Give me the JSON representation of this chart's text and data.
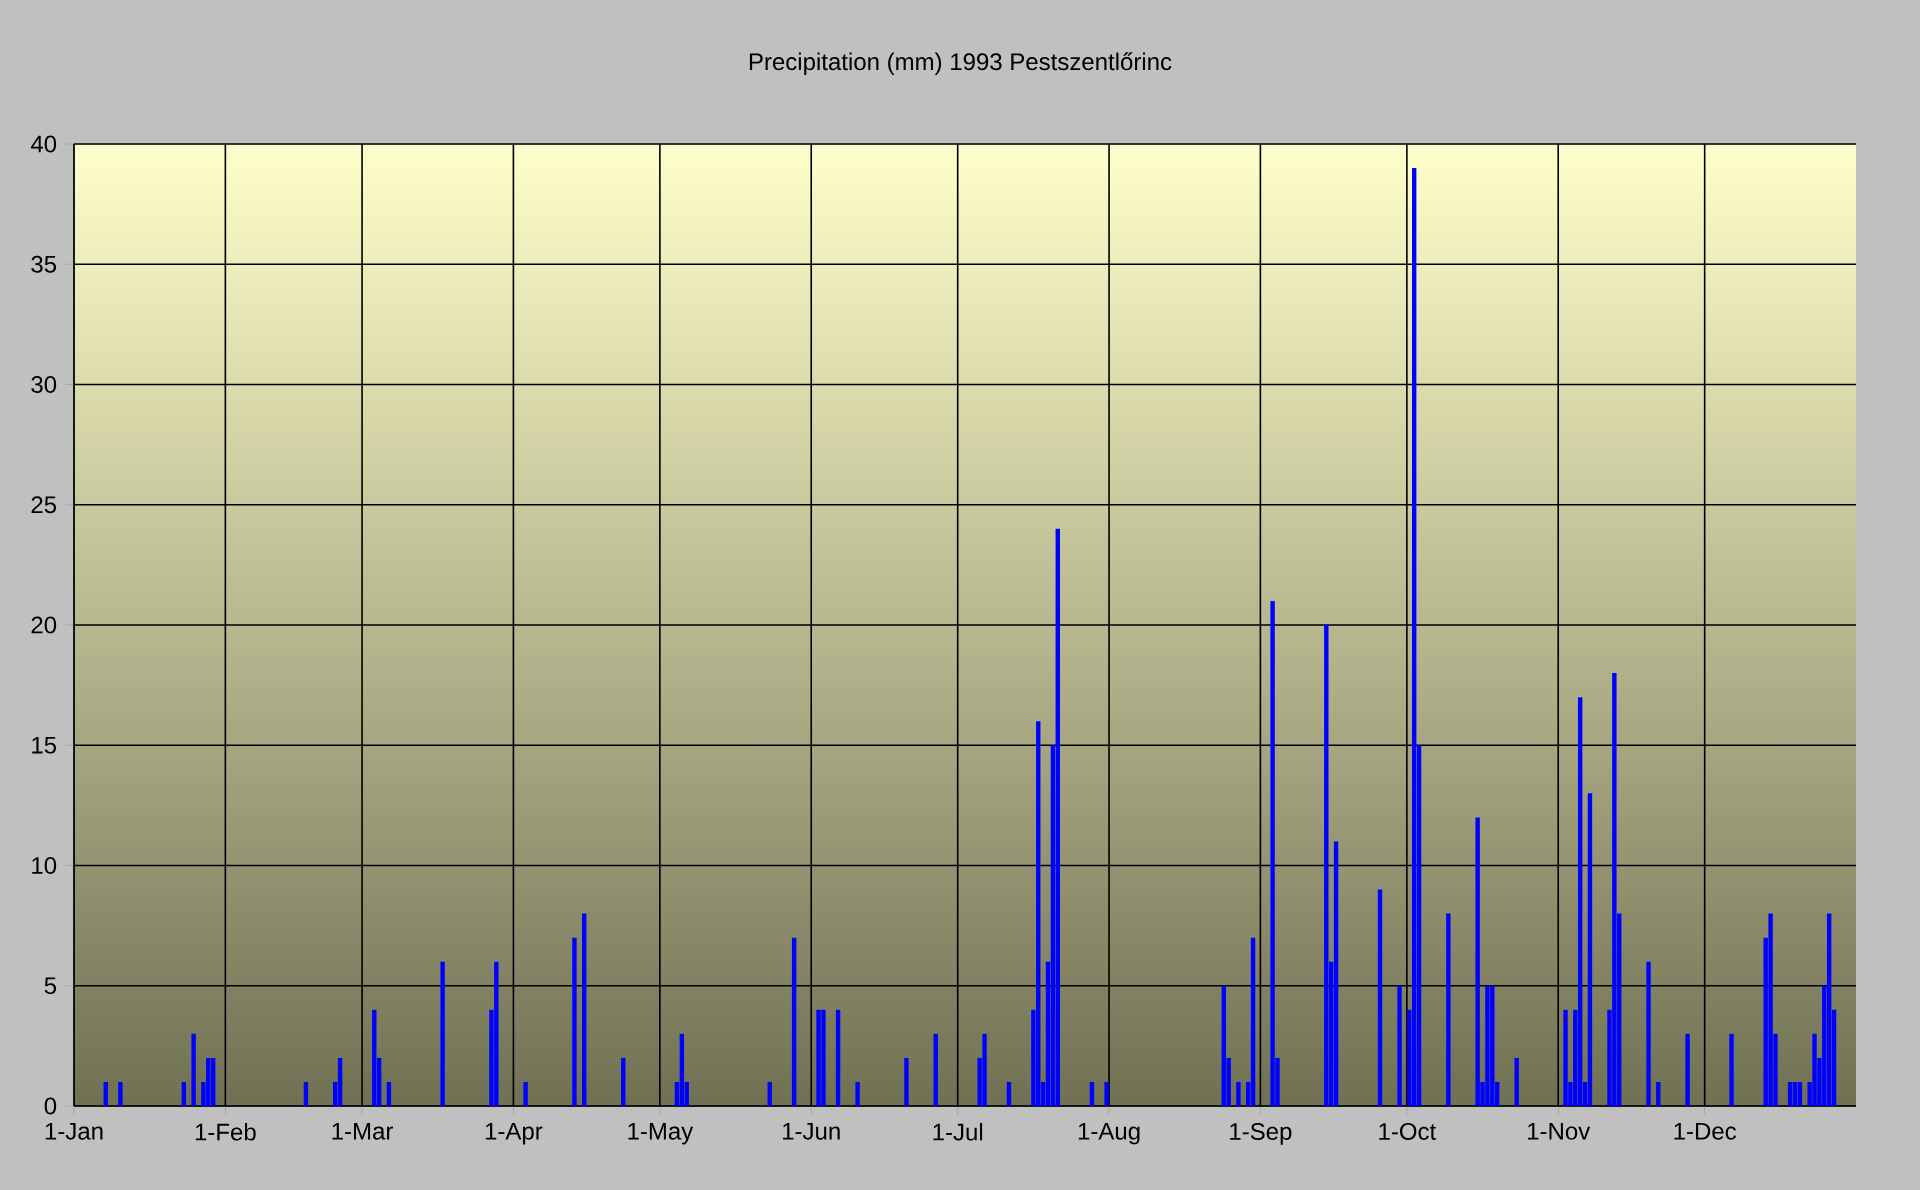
{
  "chart_data": {
    "type": "bar",
    "title": "Precipitation (mm) 1993 Pestszentlőrinc",
    "x": [
      "1993-01-07",
      "1993-01-10",
      "1993-01-23",
      "1993-01-25",
      "1993-01-27",
      "1993-01-28",
      "1993-01-29",
      "1993-02-17",
      "1993-02-23",
      "1993-02-24",
      "1993-03-03",
      "1993-03-04",
      "1993-03-06",
      "1993-03-17",
      "1993-03-27",
      "1993-03-28",
      "1993-04-03",
      "1993-04-13",
      "1993-04-15",
      "1993-04-23",
      "1993-05-04",
      "1993-05-05",
      "1993-05-06",
      "1993-05-23",
      "1993-05-28",
      "1993-06-02",
      "1993-06-03",
      "1993-06-06",
      "1993-06-10",
      "1993-06-20",
      "1993-06-26",
      "1993-07-05",
      "1993-07-06",
      "1993-07-11",
      "1993-07-16",
      "1993-07-17",
      "1993-07-18",
      "1993-07-19",
      "1993-07-20",
      "1993-07-21",
      "1993-07-28",
      "1993-07-31",
      "1993-08-24",
      "1993-08-25",
      "1993-08-27",
      "1993-08-29",
      "1993-08-30",
      "1993-09-03",
      "1993-09-04",
      "1993-09-14",
      "1993-09-15",
      "1993-09-16",
      "1993-09-25",
      "1993-09-29",
      "1993-10-01",
      "1993-10-02",
      "1993-10-03",
      "1993-10-09",
      "1993-10-15",
      "1993-10-16",
      "1993-10-17",
      "1993-10-18",
      "1993-10-19",
      "1993-10-23",
      "1993-11-02",
      "1993-11-03",
      "1993-11-04",
      "1993-11-05",
      "1993-11-06",
      "1993-11-07",
      "1993-11-11",
      "1993-11-12",
      "1993-11-13",
      "1993-11-19",
      "1993-11-21",
      "1993-11-27",
      "1993-12-06",
      "1993-12-13",
      "1993-12-14",
      "1993-12-15",
      "1993-12-18",
      "1993-12-19",
      "1993-12-20",
      "1993-12-22",
      "1993-12-23",
      "1993-12-24",
      "1993-12-25",
      "1993-12-26",
      "1993-12-27"
    ],
    "values": [
      1,
      1,
      1,
      3,
      1,
      2,
      2,
      1,
      1,
      2,
      4,
      2,
      1,
      6,
      4,
      6,
      1,
      7,
      8,
      2,
      1,
      3,
      1,
      1,
      7,
      4,
      4,
      4,
      1,
      2,
      3,
      2,
      3,
      1,
      4,
      16,
      1,
      6,
      15,
      24,
      1,
      1,
      5,
      2,
      1,
      1,
      7,
      21,
      2,
      20,
      6,
      11,
      9,
      5,
      4,
      39,
      15,
      8,
      12,
      1,
      5,
      5,
      1,
      2,
      4,
      1,
      4,
      17,
      1,
      13,
      4,
      18,
      8,
      6,
      1,
      3,
      3,
      7,
      8,
      3,
      1,
      1,
      1,
      1,
      3,
      2,
      5,
      8,
      4
    ],
    "color": "#0000ff",
    "xlim": [
      "1993-01-01",
      "1994-01-01"
    ],
    "xticks": [
      {
        "value": "1993-01-01",
        "label": "1-Jan"
      },
      {
        "value": "1993-02-01",
        "label": "1-Feb"
      },
      {
        "value": "1993-03-01",
        "label": "1-Mar"
      },
      {
        "value": "1993-04-01",
        "label": "1-Apr"
      },
      {
        "value": "1993-05-01",
        "label": "1-May"
      },
      {
        "value": "1993-06-01",
        "label": "1-Jun"
      },
      {
        "value": "1993-07-01",
        "label": "1-Jul"
      },
      {
        "value": "1993-08-01",
        "label": "1-Aug"
      },
      {
        "value": "1993-09-01",
        "label": "1-Sep"
      },
      {
        "value": "1993-10-01",
        "label": "1-Oct"
      },
      {
        "value": "1993-11-01",
        "label": "1-Nov"
      },
      {
        "value": "1993-12-01",
        "label": "1-Dec"
      }
    ],
    "ylim": [
      0,
      40
    ],
    "yticks": [
      0,
      5,
      10,
      15,
      20,
      25,
      30,
      35,
      40
    ],
    "grid": true
  }
}
